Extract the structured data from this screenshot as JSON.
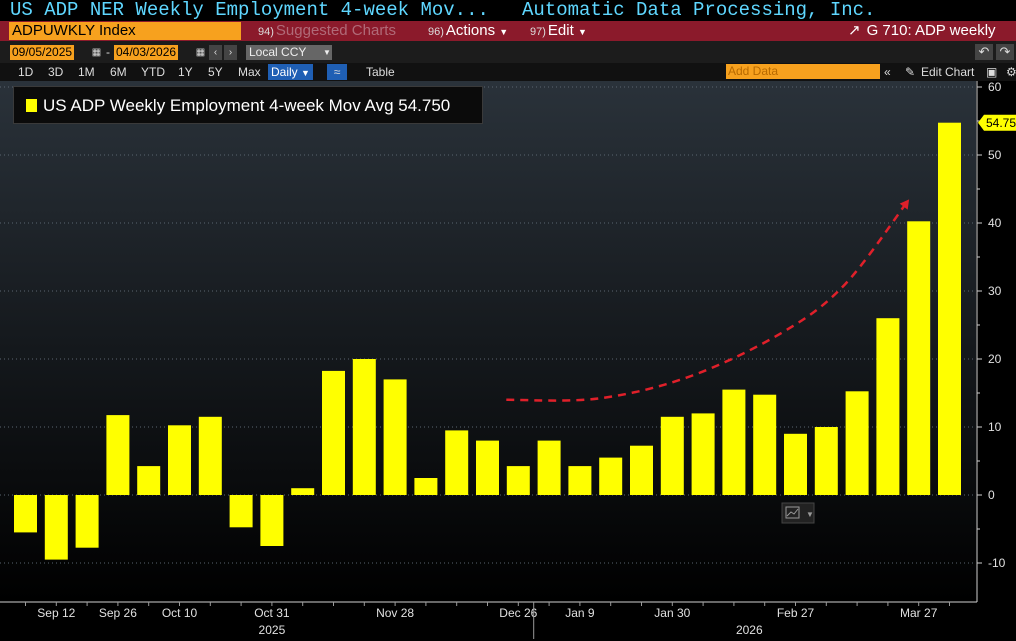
{
  "title_bar": {
    "left": "US ADP NER Weekly Employment 4-week Mov...",
    "right": "Automatic Data Processing, Inc."
  },
  "toolbar": {
    "ticker": "ADPUWKLY Index",
    "suggested_num": "94)",
    "suggested_label": "Suggested Charts",
    "actions_num": "96)",
    "actions_label": "Actions",
    "edit_num": "97)",
    "edit_label": "Edit",
    "function_label": "G 710: ADP weekly"
  },
  "date_range": {
    "start": "09/05/2025",
    "end": "04/03/2026",
    "currency": "Local CCY"
  },
  "periods": [
    "1D",
    "3D",
    "1M",
    "6M",
    "YTD",
    "1Y",
    "5Y",
    "Max"
  ],
  "frequency": "Daily",
  "table_label": "Table",
  "add_data_placeholder": "Add Data",
  "edit_chart_label": "Edit Chart",
  "legend": {
    "label": "US ADP Weekly Employment 4-week Mov Avg 54.750"
  },
  "colors": {
    "bar": "#ffff00",
    "trend": "#e0202a",
    "background_top": "#2a323a",
    "background_bottom": "#000000",
    "last_value_badge": "#ffff00"
  },
  "chart_data": {
    "type": "bar",
    "title": "US ADP Weekly Employment 4-week Mov Avg",
    "last_value": "54.75",
    "ylim": [
      -15,
      61
    ],
    "yticks": [
      -10,
      0,
      10,
      20,
      30,
      40,
      50,
      60
    ],
    "grid": true,
    "legend_position": "top-left",
    "x": [
      "2025-09-05",
      "2025-09-12",
      "2025-09-19",
      "2025-09-26",
      "2025-10-03",
      "2025-10-10",
      "2025-10-17",
      "2025-10-24",
      "2025-10-31",
      "2025-11-07",
      "2025-11-14",
      "2025-11-21",
      "2025-11-28",
      "2025-12-05",
      "2025-12-12",
      "2025-12-19",
      "2025-12-26",
      "2026-01-02",
      "2026-01-09",
      "2026-01-16",
      "2026-01-23",
      "2026-01-30",
      "2026-02-06",
      "2026-02-13",
      "2026-02-20",
      "2026-02-27",
      "2026-03-06",
      "2026-03-13",
      "2026-03-20",
      "2026-03-27",
      "2026-04-03"
    ],
    "values": [
      -5.5,
      -9.5,
      -7.75,
      11.75,
      4.25,
      10.25,
      11.5,
      -4.75,
      -7.5,
      1.0,
      18.25,
      20.0,
      17.0,
      2.5,
      9.5,
      8.0,
      4.25,
      8.0,
      4.25,
      5.5,
      7.25,
      11.5,
      12.0,
      15.5,
      14.75,
      9.0,
      10.0,
      15.25,
      26.0,
      40.25,
      54.75
    ],
    "x_tick_labels": [
      {
        "label": "Sep 12",
        "index": 1
      },
      {
        "label": "Sep 26",
        "index": 3
      },
      {
        "label": "Oct 10",
        "index": 5
      },
      {
        "label": "Oct 31",
        "index": 8
      },
      {
        "label": "Nov 28",
        "index": 12
      },
      {
        "label": "Dec 26",
        "index": 16
      },
      {
        "label": "Jan 9",
        "index": 18
      },
      {
        "label": "Jan 30",
        "index": 21
      },
      {
        "label": "Feb 27",
        "index": 25
      },
      {
        "label": "Mar 27",
        "index": 29
      }
    ],
    "year_labels": [
      {
        "label": "2025",
        "index": 8
      },
      {
        "label": "2026",
        "index": 23.5
      }
    ],
    "annotation_trend": {
      "style": "dashed",
      "points": [
        [
          16,
          14
        ],
        [
          19,
          14.2
        ],
        [
          22,
          17.5
        ],
        [
          25,
          24
        ],
        [
          27,
          31
        ],
        [
          29,
          43
        ]
      ]
    }
  }
}
